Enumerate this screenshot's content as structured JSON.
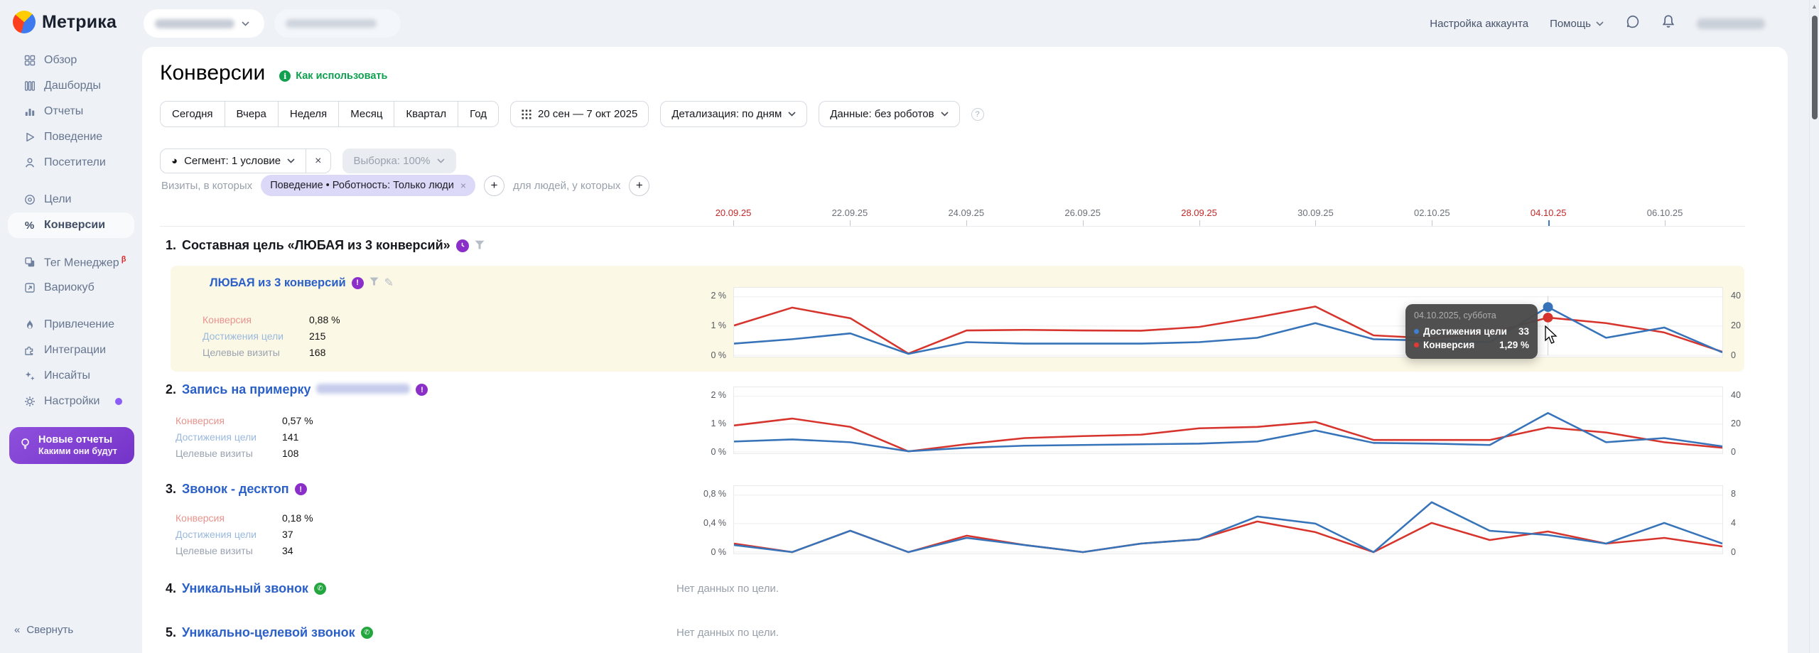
{
  "app": {
    "logo_text": "Метрика"
  },
  "header": {
    "account_settings": "Настройка аккаунта",
    "help": "Помощь"
  },
  "sidebar": {
    "items": [
      {
        "label": "Обзор"
      },
      {
        "label": "Дашборды"
      },
      {
        "label": "Отчеты"
      },
      {
        "label": "Поведение"
      },
      {
        "label": "Посетители"
      },
      {
        "label": "Цели"
      },
      {
        "label": "Конверсии"
      },
      {
        "label": "Тег Менеджер",
        "badge": "β"
      },
      {
        "label": "Вариокуб"
      },
      {
        "label": "Привлечение"
      },
      {
        "label": "Интеграции"
      },
      {
        "label": "Инсайты"
      },
      {
        "label": "Настройки"
      }
    ],
    "banner": {
      "title": "Новые отчеты",
      "subtitle": "Какими они будут"
    },
    "collapse": "Свернуть"
  },
  "page": {
    "title": "Конверсии",
    "how_to_use": "Как использовать",
    "period_buttons": [
      "Сегодня",
      "Вчера",
      "Неделя",
      "Месяц",
      "Квартал",
      "Год"
    ],
    "date_range": "20 сен — 7 окт 2025",
    "detail": "Детализация: по дням",
    "data_mode": "Данные: без роботов",
    "segment": "Сегмент: 1 условие",
    "sampling": "Выборка: 100%",
    "visits_label": "Визиты, в которых",
    "segment_pill": "Поведение • Роботность: Только люди",
    "people_label": "для людей, у которых"
  },
  "timeline": {
    "ticks": [
      {
        "label": "20.09.25",
        "red": true
      },
      {
        "label": "22.09.25"
      },
      {
        "label": "24.09.25"
      },
      {
        "label": "26.09.25"
      },
      {
        "label": "28.09.25",
        "red": true
      },
      {
        "label": "30.09.25"
      },
      {
        "label": "02.10.25"
      },
      {
        "label": "04.10.25",
        "red": true,
        "active": true
      },
      {
        "label": "06.10.25"
      }
    ]
  },
  "goals": [
    {
      "num": "1.",
      "title": "Составная цель «ЛЮБАЯ из 3 конверсий»",
      "subgoal": "ЛЮБАЯ из 3 конверсий",
      "metrics": [
        {
          "label": "Конверсия",
          "value": "0,88 %"
        },
        {
          "label": "Достижения цели",
          "value": "215"
        },
        {
          "label": "Целевые визиты",
          "value": "168"
        }
      ]
    },
    {
      "num": "2.",
      "title": "Запись на примерку",
      "metrics": [
        {
          "label": "Конверсия",
          "value": "0,57 %"
        },
        {
          "label": "Достижения цели",
          "value": "141"
        },
        {
          "label": "Целевые визиты",
          "value": "108"
        }
      ]
    },
    {
      "num": "3.",
      "title": "Звонок - десктоп",
      "metrics": [
        {
          "label": "Конверсия",
          "value": "0,18 %"
        },
        {
          "label": "Достижения цели",
          "value": "37"
        },
        {
          "label": "Целевые визиты",
          "value": "34"
        }
      ]
    },
    {
      "num": "4.",
      "title": "Уникальный звонок"
    },
    {
      "num": "5.",
      "title": "Уникально-целевой звонок"
    }
  ],
  "no_data": "Нет данных по цели.",
  "tooltip": {
    "date": "04.10.2025, суббота",
    "rows": [
      {
        "label": "Достижения цели",
        "value": "33",
        "color": "#3e7fd0"
      },
      {
        "label": "Конверсия",
        "value": "1,29 %",
        "color": "#e03a32"
      }
    ]
  },
  "hover": {
    "chart_index": 0,
    "point_index": 14
  },
  "chart_data": [
    {
      "type": "line",
      "title": "Составная цель «ЛЮБАЯ из 3 конверсий»",
      "x": [
        "20.09.2025",
        "21.09.2025",
        "22.09.2025",
        "23.09.2025",
        "24.09.2025",
        "25.09.2025",
        "26.09.2025",
        "27.09.2025",
        "28.09.2025",
        "29.09.2025",
        "30.09.2025",
        "01.10.2025",
        "02.10.2025",
        "03.10.2025",
        "04.10.2025",
        "05.10.2025",
        "06.10.2025",
        "07.10.2025"
      ],
      "left_axis": {
        "labels": [
          "2 %",
          "1 %",
          "0 %"
        ],
        "max": 2
      },
      "right_axis": {
        "labels": [
          "40",
          "20",
          "0"
        ],
        "max": 40
      },
      "series": [
        {
          "name": "Конверсия",
          "axis": "left",
          "color": "#d6342c",
          "values": [
            1.02,
            1.63,
            1.27,
            0.06,
            0.85,
            0.87,
            0.85,
            0.84,
            0.97,
            1.3,
            1.67,
            0.68,
            0.58,
            0.76,
            1.29,
            1.1,
            0.78,
            0.12
          ]
        },
        {
          "name": "Достижения цели",
          "axis": "right",
          "color": "#3673b9",
          "values": [
            8,
            11,
            15,
            1,
            9,
            8,
            8,
            8,
            9,
            12,
            22,
            11,
            10,
            9,
            33,
            12,
            19,
            2
          ]
        }
      ]
    },
    {
      "type": "line",
      "title": "Запись на примерку",
      "x": [
        "20.09.2025",
        "21.09.2025",
        "22.09.2025",
        "23.09.2025",
        "24.09.2025",
        "25.09.2025",
        "26.09.2025",
        "27.09.2025",
        "28.09.2025",
        "29.09.2025",
        "30.09.2025",
        "01.10.2025",
        "02.10.2025",
        "03.10.2025",
        "04.10.2025",
        "05.10.2025",
        "06.10.2025",
        "07.10.2025"
      ],
      "left_axis": {
        "labels": [
          "2 %",
          "1 %",
          "0 %"
        ],
        "max": 2
      },
      "right_axis": {
        "labels": [
          "40",
          "20",
          "0"
        ],
        "max": 40
      },
      "series": [
        {
          "name": "Конверсия",
          "axis": "left",
          "color": "#d6342c",
          "values": [
            0.95,
            1.2,
            0.9,
            0.02,
            0.28,
            0.5,
            0.57,
            0.62,
            0.85,
            0.9,
            1.08,
            0.43,
            0.43,
            0.43,
            0.88,
            0.7,
            0.35,
            0.15
          ]
        },
        {
          "name": "Достижения цели",
          "axis": "right",
          "color": "#3673b9",
          "values": [
            7.5,
            9,
            7,
            0.5,
            3,
            4.5,
            5,
            5.5,
            6,
            7.5,
            15.5,
            6.5,
            6,
            5,
            28,
            7,
            10,
            4
          ]
        }
      ]
    },
    {
      "type": "line",
      "title": "Звонок - десктоп",
      "x": [
        "20.09.2025",
        "21.09.2025",
        "22.09.2025",
        "23.09.2025",
        "24.09.2025",
        "25.09.2025",
        "26.09.2025",
        "27.09.2025",
        "28.09.2025",
        "29.09.2025",
        "30.09.2025",
        "01.10.2025",
        "02.10.2025",
        "03.10.2025",
        "04.10.2025",
        "05.10.2025",
        "06.10.2025",
        "07.10.2025"
      ],
      "left_axis": {
        "labels": [
          "0,8 %",
          "0,4 %",
          "0 %"
        ],
        "max": 0.8
      },
      "right_axis": {
        "labels": [
          "8",
          "4",
          "0"
        ],
        "max": 8
      },
      "series": [
        {
          "name": "Конверсия",
          "axis": "left",
          "color": "#d6342c",
          "values": [
            0.12,
            0,
            0.3,
            0,
            0.23,
            0.1,
            0,
            0.12,
            0.18,
            0.43,
            0.28,
            0,
            0.41,
            0.17,
            0.29,
            0.12,
            0.2,
            0.08
          ]
        },
        {
          "name": "Достижения цели",
          "axis": "right",
          "color": "#3673b9",
          "values": [
            1.0,
            0,
            3.0,
            0,
            2.0,
            1.0,
            0,
            1.2,
            1.8,
            5.0,
            4.0,
            0,
            7.0,
            3.0,
            2.4,
            1.2,
            4.1,
            1.2
          ]
        }
      ]
    }
  ]
}
